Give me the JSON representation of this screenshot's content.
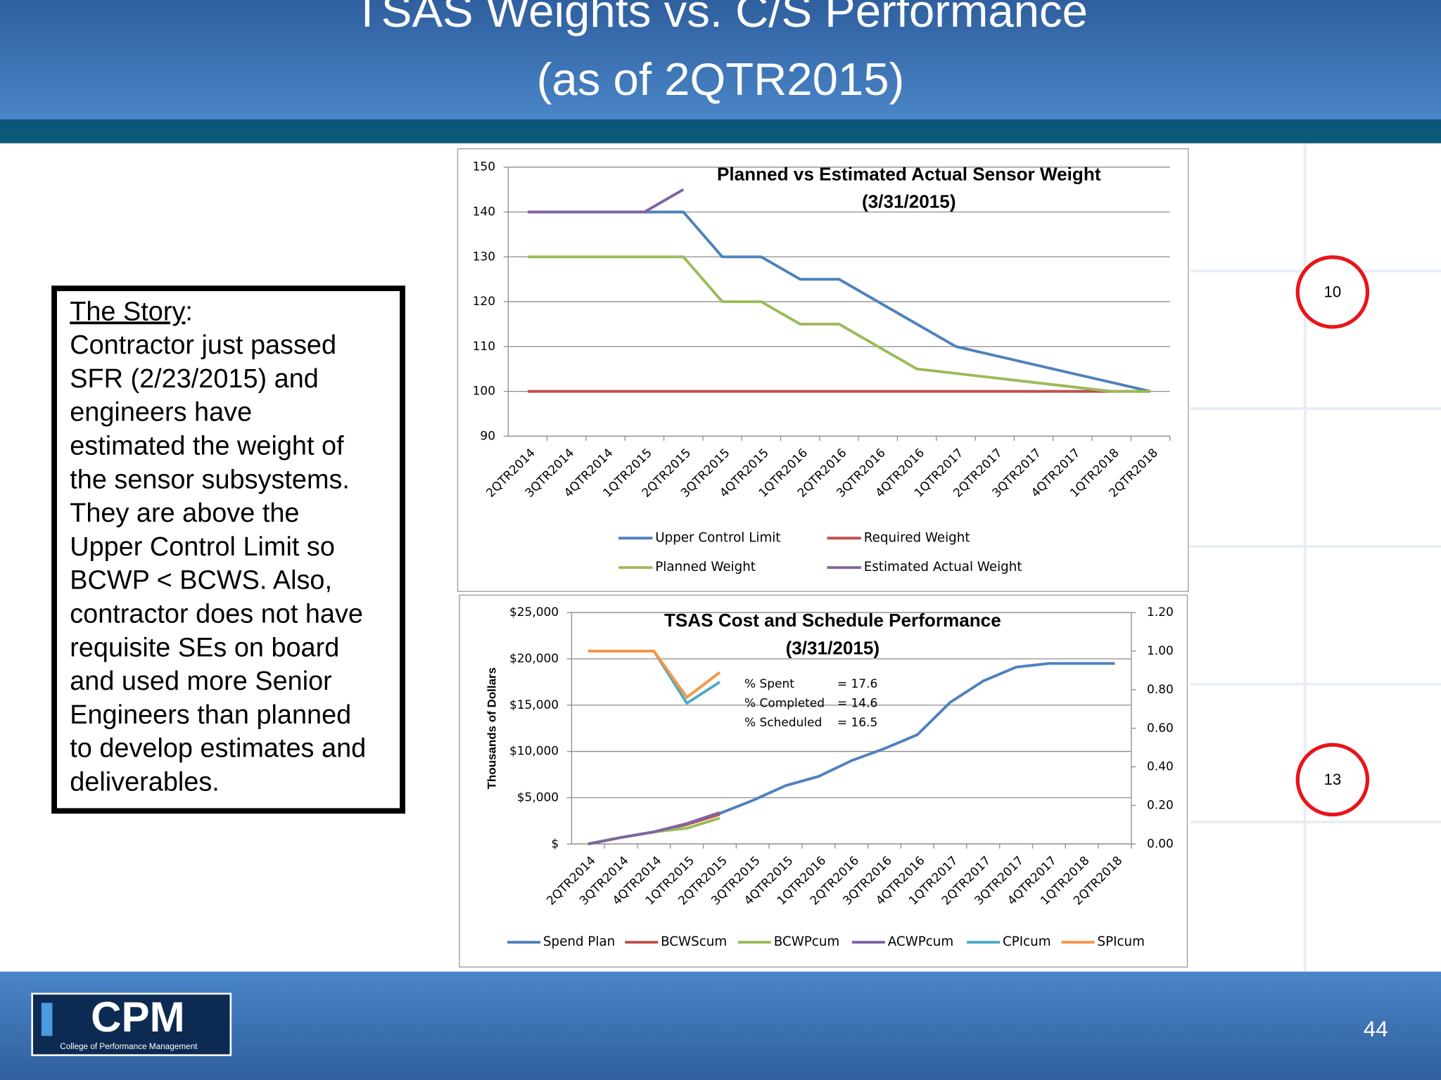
{
  "slide": {
    "title_lines": [
      "TSAS Weights vs. C/S Performance",
      "(as of 2QTR2015)"
    ],
    "story": {
      "heading": "The Story",
      "heading_suffix": ":",
      "lines": [
        "Contractor just passed",
        "SFR  (2/23/2015) and",
        "engineers have",
        "estimated the weight of",
        "the sensor subsystems.",
        "They are above the",
        "Upper Control Limit so",
        "BCWP < BCWS. Also,",
        "contractor does not have",
        "requisite SEs on board",
        "and used more Senior",
        "Engineers than planned",
        "to develop estimates and",
        "deliverables."
      ]
    },
    "markers": [
      "10",
      "13"
    ],
    "page_number": "44",
    "logo": {
      "name": "CPM",
      "subtitle": "College of Performance Management"
    }
  },
  "chart_data": [
    {
      "type": "line",
      "title": [
        "Planned vs Estimated Actual Sensor Weight",
        "(3/31/2015)"
      ],
      "categories": [
        "2QTR2014",
        "3QTR2014",
        "4QTR2014",
        "1QTR2015",
        "2QTR2015",
        "3QTR2015",
        "4QTR2015",
        "1QTR2016",
        "2QTR2016",
        "3QTR2016",
        "4QTR2016",
        "1QTR2017",
        "2QTR2017",
        "3QTR2017",
        "4QTR2017",
        "1QTR2018",
        "2QTR2018"
      ],
      "ylim": [
        90,
        150
      ],
      "yticks": [
        90,
        100,
        110,
        120,
        130,
        140,
        150
      ],
      "grid": true,
      "series": [
        {
          "name": "Upper Control Limit",
          "color": "#4f81bd",
          "values": [
            140,
            140,
            140,
            140,
            140,
            130,
            130,
            125,
            125,
            120,
            115,
            110,
            108,
            106,
            104,
            102,
            100
          ]
        },
        {
          "name": "Required Weight",
          "color": "#c0504d",
          "values": [
            100,
            100,
            100,
            100,
            100,
            100,
            100,
            100,
            100,
            100,
            100,
            100,
            100,
            100,
            100,
            100,
            100
          ]
        },
        {
          "name": "Planned Weight",
          "color": "#9bbb59",
          "values": [
            130,
            130,
            130,
            130,
            130,
            120,
            120,
            115,
            115,
            110,
            105,
            104,
            103,
            102,
            101,
            100,
            100
          ]
        },
        {
          "name": "Estimated Actual Weight",
          "color": "#8064a2",
          "values": [
            140,
            140,
            140,
            140,
            145,
            null,
            null,
            null,
            null,
            null,
            null,
            null,
            null,
            null,
            null,
            null,
            null
          ]
        }
      ]
    },
    {
      "type": "line",
      "title": [
        "TSAS Cost and Schedule Performance",
        "(3/31/2015)"
      ],
      "ylabel": "Thousands of Dollars",
      "categories": [
        "2QTR2014",
        "3QTR2014",
        "4QTR2014",
        "1QTR2015",
        "2QTR2015",
        "3QTR2015",
        "4QTR2015",
        "1QTR2016",
        "2QTR2016",
        "3QTR2016",
        "4QTR2016",
        "1QTR2017",
        "2QTR2017",
        "3QTR2017",
        "4QTR2017",
        "1QTR2018",
        "2QTR2018"
      ],
      "ylim": [
        0,
        25000
      ],
      "yticks": [
        {
          "value": 0,
          "label": "$"
        },
        {
          "value": 5000,
          "label": "$5,000"
        },
        {
          "value": 10000,
          "label": "$10,000"
        },
        {
          "value": 15000,
          "label": "$15,000"
        },
        {
          "value": 20000,
          "label": "$20,000"
        },
        {
          "value": 25000,
          "label": "$25,000"
        }
      ],
      "y2lim": [
        0,
        1.2
      ],
      "y2ticks": [
        {
          "value": 0,
          "label": "0.00"
        },
        {
          "value": 0.2,
          "label": "0.20"
        },
        {
          "value": 0.4,
          "label": "0.40"
        },
        {
          "value": 0.6,
          "label": "0.60"
        },
        {
          "value": 0.8,
          "label": "0.80"
        },
        {
          "value": 1,
          "label": "1.00"
        },
        {
          "value": 1.2,
          "label": "1.20"
        }
      ],
      "grid": true,
      "annotations": [
        {
          "label": "% Spent",
          "value": "= 17.6"
        },
        {
          "label": "% Completed",
          "value": "= 14.6"
        },
        {
          "label": "% Scheduled",
          "value": "= 16.5"
        }
      ],
      "series": [
        {
          "name": "Spend Plan",
          "color": "#4f81bd",
          "values": [
            0,
            700,
            1300,
            2200,
            3300,
            4700,
            6300,
            7300,
            9000,
            10300,
            11800,
            15300,
            17600,
            19100,
            19500,
            19500,
            19500
          ]
        },
        {
          "name": "BCWScum",
          "color": "#c0504d",
          "values": [
            0,
            700,
            1300,
            2100,
            3200,
            null,
            null,
            null,
            null,
            null,
            null,
            null,
            null,
            null,
            null,
            null,
            null
          ]
        },
        {
          "name": "BCWPcum",
          "color": "#9bbb59",
          "values": [
            0,
            700,
            1300,
            1700,
            2800,
            null,
            null,
            null,
            null,
            null,
            null,
            null,
            null,
            null,
            null,
            null,
            null
          ]
        },
        {
          "name": "ACWPcum",
          "color": "#8064a2",
          "values": [
            0,
            700,
            1300,
            2200,
            3400,
            null,
            null,
            null,
            null,
            null,
            null,
            null,
            null,
            null,
            null,
            null,
            null
          ]
        },
        {
          "name": "CPIcum",
          "color": "#4bacc6",
          "axis": "y2",
          "values": [
            1,
            1,
            1,
            0.73,
            0.84,
            null,
            null,
            null,
            null,
            null,
            null,
            null,
            null,
            null,
            null,
            null,
            null
          ]
        },
        {
          "name": "SPIcum",
          "color": "#f79646",
          "axis": "y2",
          "values": [
            1,
            1,
            1,
            0.76,
            0.89,
            null,
            null,
            null,
            null,
            null,
            null,
            null,
            null,
            null,
            null,
            null,
            null
          ]
        }
      ]
    }
  ]
}
